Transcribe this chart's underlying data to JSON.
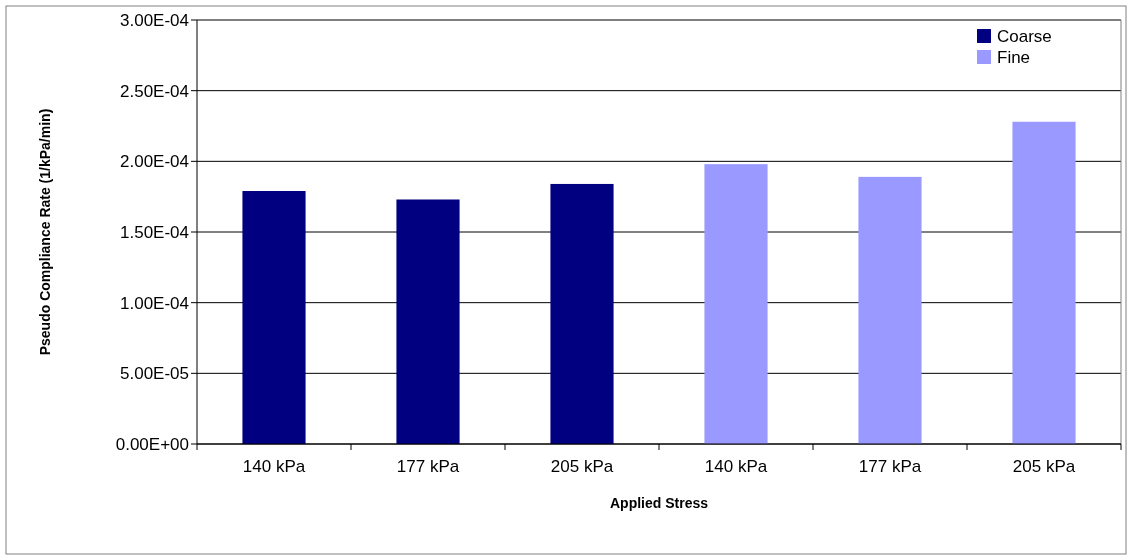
{
  "chart_data": {
    "type": "bar",
    "stacked": true,
    "categories": [
      "140 kPa",
      "177 kPa",
      "205 kPa",
      "140 kPa",
      "177 kPa",
      "205 kPa"
    ],
    "series": [
      {
        "name": "Coarse",
        "color": "#000080",
        "values": [
          0.000179,
          0.000173,
          0.000184,
          null,
          null,
          null
        ]
      },
      {
        "name": "Fine",
        "color": "#9999ff",
        "values": [
          null,
          null,
          null,
          0.000198,
          0.000189,
          0.000228
        ]
      }
    ],
    "xlabel": "Applied Stress",
    "ylabel": "Pseudo Compliance Rate (1/kPa/min)",
    "ylim": [
      0,
      0.0003
    ],
    "yticks": [
      {
        "value": 0,
        "label": "0.00E+00"
      },
      {
        "value": 5e-05,
        "label": "5.00E-05"
      },
      {
        "value": 0.0001,
        "label": "1.00E-04"
      },
      {
        "value": 0.00015,
        "label": "1.50E-04"
      },
      {
        "value": 0.0002,
        "label": "2.00E-04"
      },
      {
        "value": 0.00025,
        "label": "2.50E-04"
      },
      {
        "value": 0.0003,
        "label": "3.00E-04"
      }
    ],
    "grid": "y",
    "legend": "top right"
  }
}
